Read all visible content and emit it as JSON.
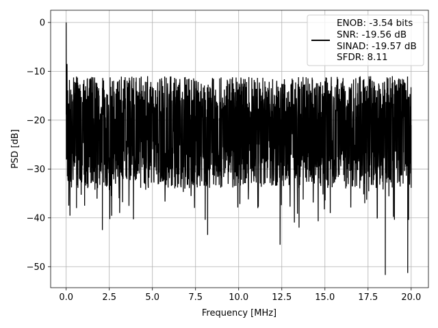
{
  "chart_data": {
    "type": "line",
    "title": "",
    "xlabel": "Frequency [MHz]",
    "ylabel": "PSD [dB]",
    "xlim": [
      -0.9,
      21.0
    ],
    "ylim": [
      -54.3,
      2.5
    ],
    "xticks": [
      0.0,
      2.5,
      5.0,
      7.5,
      10.0,
      12.5,
      15.0,
      17.5,
      20.0
    ],
    "xtick_labels": [
      "0.0",
      "2.5",
      "5.0",
      "7.5",
      "10.0",
      "12.5",
      "15.0",
      "17.5",
      "20.0"
    ],
    "yticks": [
      0,
      -10,
      -20,
      -30,
      -40,
      -50
    ],
    "ytick_labels": [
      "0",
      "−10",
      "−20",
      "−30",
      "−40",
      "−50"
    ],
    "grid": true,
    "legend_position": "top-right",
    "legend": [
      "ENOB: -3.54 bits",
      "SNR: -19.56 dB",
      "SINAD: -19.57 dB",
      "SFDR: 8.11"
    ],
    "series": [
      {
        "color": "#000000",
        "x_start": 0.0,
        "x_end": 20.0,
        "note_points": "noise floor with peak at 0 MHz",
        "x": [
          0.0,
          0.02,
          0.05,
          0.1,
          0.15,
          0.2,
          0.6,
          2.1,
          3.1,
          8.2,
          12.4,
          13.5,
          18.5,
          19.8,
          20.0
        ],
        "values": [
          0.0,
          -12.5,
          -8.5,
          -32.0,
          -37.5,
          -25.0,
          -38.0,
          -42.5,
          -39.0,
          -43.5,
          -45.5,
          -42.0,
          -51.7,
          -51.3,
          -21.0
        ]
      }
    ]
  }
}
